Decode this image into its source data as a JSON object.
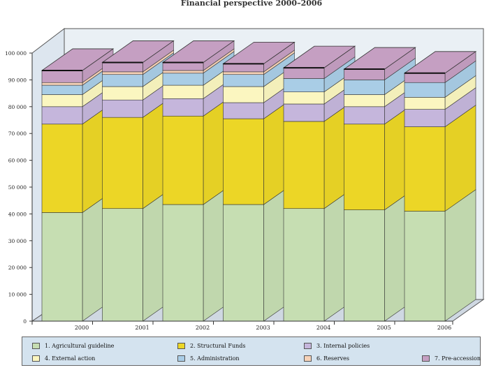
{
  "chart_data": {
    "type": "bar",
    "stacked": true,
    "title": "Financial perspective 2000–2006",
    "xlabel": "",
    "ylabel": "",
    "ylim": [
      0,
      100000
    ],
    "yticks": [
      0,
      10000,
      20000,
      30000,
      40000,
      50000,
      60000,
      70000,
      80000,
      90000,
      100000
    ],
    "ytick_labels": [
      "0",
      "10 000",
      "20 000",
      "30 000",
      "40 000",
      "50 000",
      "60 000",
      "70 000",
      "80 000",
      "90 000",
      "100 000"
    ],
    "categories": [
      "2000",
      "2001",
      "2002",
      "2003",
      "2004",
      "2005",
      "2006"
    ],
    "series": [
      {
        "name": "1. Agricultural guideline",
        "color": "#c6deb2",
        "values": [
          40500,
          42000,
          43500,
          43500,
          42000,
          41500,
          41000
        ]
      },
      {
        "name": "2. Structural Funds",
        "color": "#ecd626",
        "values": [
          33000,
          34000,
          33000,
          32000,
          32500,
          32000,
          31500
        ]
      },
      {
        "name": "3. Internal policies",
        "color": "#c5b6dc",
        "values": [
          6500,
          6500,
          6500,
          6000,
          6500,
          6500,
          6500
        ]
      },
      {
        "name": "4. External action",
        "color": "#fbf6c0",
        "values": [
          4500,
          5000,
          5000,
          6000,
          4500,
          4500,
          4500
        ]
      },
      {
        "name": "5. Administration",
        "color": "#a9cde6",
        "values": [
          3500,
          4500,
          4500,
          4500,
          5000,
          5500,
          5500
        ]
      },
      {
        "name": "6. Reserves",
        "color": "#f6d2b8",
        "values": [
          1000,
          1000,
          1000,
          1000,
          0,
          0,
          0
        ]
      },
      {
        "name": "7. Pre-accession",
        "color": "#c59fc2",
        "values": [
          4500,
          3500,
          3000,
          3000,
          4000,
          4000,
          3500
        ]
      }
    ],
    "grid": false,
    "legend_position": "bottom"
  }
}
